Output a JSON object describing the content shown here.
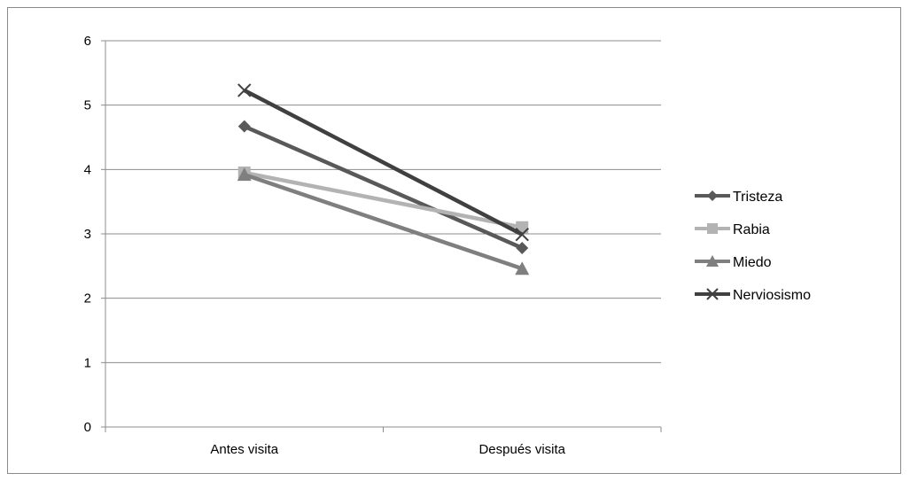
{
  "chart_data": {
    "type": "line",
    "categories": [
      "Antes visita",
      "Después visita"
    ],
    "series": [
      {
        "name": "Tristeza",
        "values": [
          4.67,
          2.78
        ],
        "color": "#595959",
        "marker": "diamond"
      },
      {
        "name": "Rabia",
        "values": [
          3.95,
          3.1
        ],
        "color": "#b3b3b3",
        "marker": "square"
      },
      {
        "name": "Miedo",
        "values": [
          3.92,
          2.46
        ],
        "color": "#7f7f7f",
        "marker": "triangle"
      },
      {
        "name": "Nerviosismo",
        "values": [
          5.23,
          2.99
        ],
        "color": "#404040",
        "marker": "x"
      }
    ],
    "ylim": [
      0,
      6
    ],
    "yticks": [
      0,
      1,
      2,
      3,
      4,
      5,
      6
    ],
    "grid": true,
    "legend_position": "right"
  }
}
